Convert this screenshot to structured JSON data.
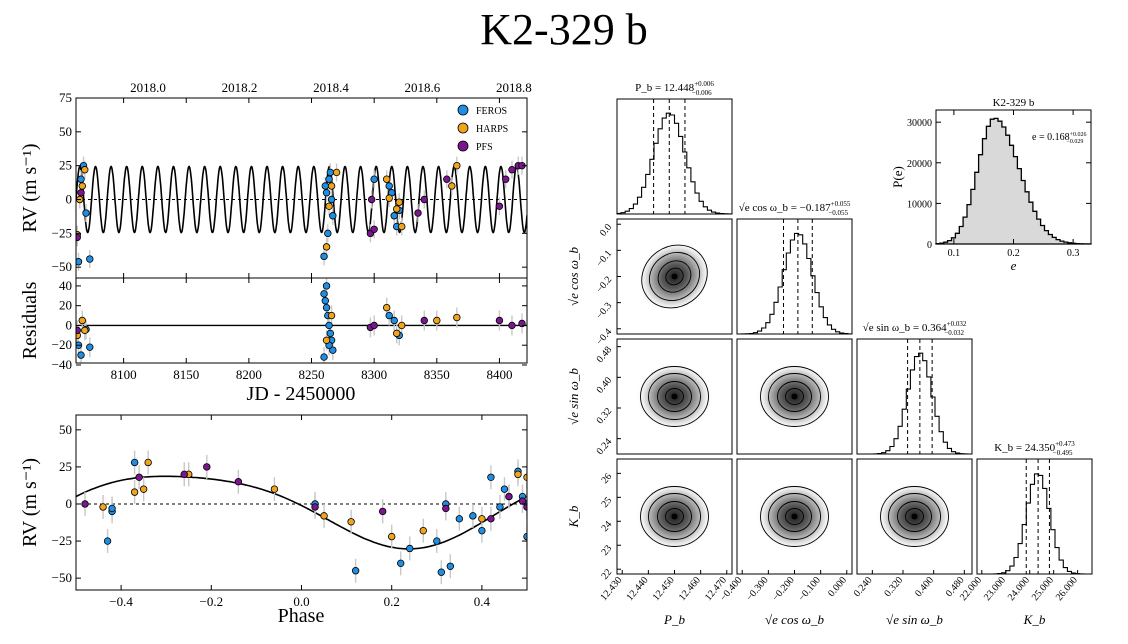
{
  "title": "K2-329 b",
  "colors": {
    "FEROS": "#1f8fe5",
    "HARPS": "#f0a51c",
    "PFS": "#7b1590"
  },
  "chart_data": [
    {
      "id": "rv-time",
      "type": "scatter",
      "xlabel": "JD - 2450000",
      "ylabel": "RV (m s⁻¹)",
      "xlim": [
        8062,
        8422
      ],
      "ylim": [
        -58,
        75
      ],
      "xticks": [
        "8100",
        "8150",
        "8200",
        "8250",
        "8300",
        "8350",
        "8400"
      ],
      "yticks": [
        "−50",
        "−25",
        "0",
        "25",
        "50",
        "75"
      ],
      "top_axis_ticks": [
        "2018.0",
        "2018.2",
        "2018.4",
        "2018.6",
        "2018.8"
      ],
      "top_axis_tick_positions": [
        8119.5,
        8192.5,
        8265.5,
        8338.5,
        8411.5
      ],
      "legend": [
        "FEROS",
        "HARPS",
        "PFS"
      ],
      "legend_loc": "top-right",
      "model": {
        "period": 12.448,
        "amplitude": 24.35
      },
      "series": [
        {
          "name": "FEROS",
          "x": [
            8064,
            8066,
            8068,
            8070,
            8073,
            8260,
            8261,
            8262,
            8263,
            8264,
            8265,
            8266,
            8267,
            8300,
            8312,
            8314,
            8316,
            8318,
            8320
          ],
          "y": [
            -46,
            15,
            25,
            -10,
            -44,
            -42,
            10,
            5,
            -25,
            15,
            20,
            0,
            -12,
            15,
            10,
            5,
            -12,
            -20,
            -8
          ]
        },
        {
          "name": "HARPS",
          "x": [
            8063,
            8065,
            8067,
            8069,
            8262,
            8264,
            8266,
            8270,
            8310,
            8312,
            8318,
            8320,
            8322,
            8362,
            8366
          ],
          "y": [
            -26,
            0,
            10,
            22,
            -35,
            -5,
            10,
            20,
            15,
            1,
            -7,
            -2,
            -20,
            10,
            25
          ],
          "labels": []
        },
        {
          "name": "PFS",
          "x": [
            8063,
            8066,
            8297,
            8298,
            8300,
            8335,
            8340,
            8358,
            8400,
            8405,
            8410,
            8415,
            8418
          ],
          "y": [
            -28,
            5,
            -25,
            0,
            -22,
            -10,
            0,
            15,
            -5,
            15,
            22,
            25,
            25
          ]
        }
      ]
    },
    {
      "id": "residuals",
      "type": "scatter",
      "xlabel": "JD - 2450000",
      "ylabel": "Residuals",
      "xlim": [
        8062,
        8422
      ],
      "ylim": [
        -38,
        48
      ],
      "xticks": [
        "8100",
        "8150",
        "8200",
        "8250",
        "8300",
        "8350",
        "8400"
      ],
      "yticks": [
        "−40",
        "−20",
        "0",
        "20",
        "40"
      ],
      "series": [
        {
          "name": "FEROS",
          "x": [
            8064,
            8066,
            8070,
            8073,
            8260,
            8261,
            8262,
            8263,
            8264,
            8265,
            8266,
            8267,
            8260,
            8262,
            8264,
            8312,
            8316,
            8320
          ],
          "y": [
            -20,
            -30,
            -4,
            -22,
            32,
            25,
            18,
            10,
            0,
            -8,
            -15,
            -25,
            -32,
            40,
            -20,
            10,
            5,
            -10
          ]
        },
        {
          "name": "HARPS",
          "x": [
            8063,
            8067,
            8069,
            8262,
            8266,
            8310,
            8318,
            8322,
            8350,
            8366
          ],
          "y": [
            -10,
            5,
            -5,
            -15,
            10,
            18,
            -8,
            0,
            5,
            8
          ]
        },
        {
          "name": "PFS",
          "x": [
            8063,
            8297,
            8300,
            8340,
            8400,
            8410,
            8418
          ],
          "y": [
            -5,
            -2,
            0,
            5,
            5,
            0,
            2
          ]
        }
      ]
    },
    {
      "id": "rv-phase",
      "type": "scatter",
      "xlabel": "Phase",
      "ylabel": "RV (m s⁻¹)",
      "xlim": [
        -0.5,
        0.5
      ],
      "ylim": [
        -58,
        60
      ],
      "xticks": [
        "−0.4",
        "−0.2",
        "0.0",
        "0.2",
        "0.4"
      ],
      "yticks": [
        "−50",
        "−25",
        "0",
        "25",
        "50"
      ],
      "series": [
        {
          "name": "FEROS",
          "x": [
            -0.43,
            -0.42,
            -0.42,
            -0.37,
            0.03,
            0.12,
            0.22,
            0.24,
            0.3,
            0.31,
            0.32,
            0.33,
            0.35,
            0.38,
            0.4,
            0.42,
            0.44,
            0.45,
            0.48,
            0.49,
            0.5,
            0.5
          ],
          "y": [
            -25,
            -5,
            -3,
            28,
            0,
            -45,
            -40,
            -30,
            -25,
            -46,
            0,
            -42,
            -10,
            -8,
            -18,
            18,
            -2,
            10,
            22,
            5,
            0,
            -22
          ]
        },
        {
          "name": "HARPS",
          "x": [
            -0.44,
            -0.37,
            -0.35,
            -0.34,
            -0.25,
            -0.06,
            0.05,
            0.11,
            0.2,
            0.27,
            0.4,
            0.46,
            0.48,
            0.5
          ],
          "y": [
            -2,
            8,
            10,
            28,
            20,
            10,
            -8,
            -12,
            -22,
            -18,
            -10,
            5,
            20,
            18
          ]
        },
        {
          "name": "PFS",
          "x": [
            -0.48,
            -0.36,
            -0.26,
            -0.21,
            -0.14,
            0.03,
            0.18,
            0.32,
            0.42,
            0.46,
            0.49,
            0.5
          ],
          "y": [
            0,
            18,
            20,
            25,
            15,
            -2,
            -5,
            -3,
            -10,
            5,
            2,
            -2
          ]
        }
      ],
      "model": "sin",
      "zero_line": "dashed"
    },
    {
      "id": "ecc-hist",
      "type": "bar",
      "title": "K2-329 b",
      "annotation": "e = 0.168",
      "annotation_sup": "+0.026",
      "annotation_sub": "−0.029",
      "xlabel": "e",
      "ylabel": "P(e)",
      "xlim": [
        0.07,
        0.33
      ],
      "ylim": [
        0,
        33000
      ],
      "xticks": [
        "0.1",
        "0.2",
        "0.3"
      ],
      "yticks": [
        "0",
        "10000",
        "20000",
        "30000"
      ],
      "center": 0.168,
      "sigma": 0.033,
      "peak": 31000
    },
    {
      "id": "corner",
      "type": "heatmap",
      "params": [
        {
          "label": "P_b",
          "title": "P_b = 12.448",
          "sup": "+0.006",
          "sub": "−0.006",
          "ticks": [
            "12.430",
            "12.440",
            "12.450",
            "12.460",
            "12.470"
          ],
          "median": 12.448,
          "lo": -0.006,
          "hi": 0.006,
          "range": [
            12.428,
            12.472
          ]
        },
        {
          "label": "√e cos ω_b",
          "title": "√e cos ω_b = −0.187",
          "sup": "+0.055",
          "sub": "−0.055",
          "ticks": [
            "−0.400",
            "−0.300",
            "−0.200",
            "−0.100",
            "0.000"
          ],
          "left_ticks": [
            "0.0",
            "−0.1",
            "−0.2",
            "−0.3",
            "−0.4"
          ],
          "median": -0.187,
          "lo": -0.055,
          "hi": 0.055,
          "range": [
            -0.42,
            0.02
          ]
        },
        {
          "label": "√e sin ω_b",
          "title": "√e sin ω_b = 0.364",
          "sup": "+0.032",
          "sub": "−0.032",
          "ticks": [
            "0.240",
            "0.320",
            "0.400",
            "0.480"
          ],
          "left_ticks": [
            "0.48",
            "0.40",
            "0.32",
            "0.24"
          ],
          "median": 0.364,
          "lo": -0.032,
          "hi": 0.032,
          "range": [
            0.2,
            0.5
          ]
        },
        {
          "label": "K_b",
          "title": "K_b = 24.350",
          "sup": "+0.473",
          "sub": "−0.495",
          "ticks": [
            "22.000",
            "23.000",
            "24.000",
            "25.000",
            "26.000"
          ],
          "left_ticks": [
            "26",
            "25",
            "24",
            "23",
            "22"
          ],
          "median": 24.35,
          "lo": -0.495,
          "hi": 0.473,
          "range": [
            21.8,
            26.6
          ]
        }
      ]
    }
  ]
}
